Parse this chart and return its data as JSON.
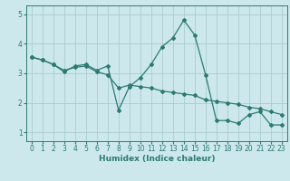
{
  "xlabel": "Humidex (Indice chaleur)",
  "ylabel": "",
  "background_color": "#cce8ec",
  "grid_color": "#aacccc",
  "line_color": "#2d7a72",
  "xlim": [
    -0.5,
    23.5
  ],
  "ylim": [
    0.7,
    5.3
  ],
  "yticks": [
    1,
    2,
    3,
    4,
    5
  ],
  "xticks": [
    0,
    1,
    2,
    3,
    4,
    5,
    6,
    7,
    8,
    9,
    10,
    11,
    12,
    13,
    14,
    15,
    16,
    17,
    18,
    19,
    20,
    21,
    22,
    23
  ],
  "series1_x": [
    0,
    1,
    2,
    3,
    4,
    5,
    6,
    7,
    8,
    9,
    10,
    11,
    12,
    13,
    14,
    15,
    16,
    17,
    18,
    19,
    20,
    21,
    22,
    23
  ],
  "series1_y": [
    3.55,
    3.45,
    3.3,
    3.05,
    3.25,
    3.3,
    3.1,
    3.25,
    1.75,
    2.55,
    2.85,
    3.3,
    3.9,
    4.2,
    4.8,
    4.3,
    2.95,
    1.4,
    1.4,
    1.3,
    1.6,
    1.7,
    1.25,
    1.25
  ],
  "series2_x": [
    0,
    1,
    2,
    3,
    4,
    5,
    6,
    7,
    8,
    9,
    10,
    11,
    12,
    13,
    14,
    15,
    16,
    17,
    18,
    19,
    20,
    21,
    22,
    23
  ],
  "series2_y": [
    3.55,
    3.45,
    3.3,
    3.1,
    3.2,
    3.25,
    3.05,
    2.95,
    2.5,
    2.6,
    2.55,
    2.5,
    2.4,
    2.35,
    2.3,
    2.25,
    2.1,
    2.05,
    2.0,
    1.95,
    1.85,
    1.8,
    1.7,
    1.6
  ],
  "marker": "D",
  "marker_size": 2.0,
  "line_width": 0.9,
  "tick_fontsize": 5.5,
  "xlabel_fontsize": 6.5
}
